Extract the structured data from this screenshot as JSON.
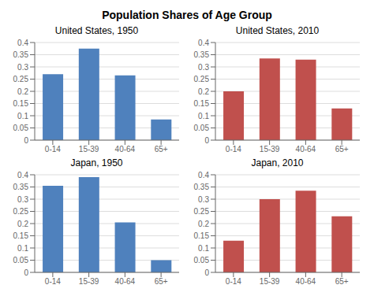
{
  "title": "Population Shares of Age Group",
  "chart_data": [
    {
      "type": "bar",
      "title": "United States, 1950",
      "categories": [
        "0-14",
        "15-39",
        "40-64",
        "65+"
      ],
      "values": [
        0.27,
        0.375,
        0.265,
        0.085
      ],
      "color": "#4F81BD",
      "ylim": [
        0,
        0.4
      ],
      "yticks": [
        0,
        0.05,
        0.1,
        0.15,
        0.2,
        0.25,
        0.3,
        0.35,
        0.4
      ],
      "grid": true
    },
    {
      "type": "bar",
      "title": "United States, 2010",
      "categories": [
        "0-14",
        "15-39",
        "40-64",
        "65+"
      ],
      "values": [
        0.2,
        0.335,
        0.33,
        0.13
      ],
      "color": "#C0504D",
      "ylim": [
        0,
        0.4
      ],
      "yticks": [
        0,
        0.05,
        0.1,
        0.15,
        0.2,
        0.25,
        0.3,
        0.35,
        0.4
      ],
      "grid": true
    },
    {
      "type": "bar",
      "title": "Japan, 1950",
      "categories": [
        "0-14",
        "15-39",
        "40-64",
        "65+"
      ],
      "values": [
        0.355,
        0.39,
        0.205,
        0.05
      ],
      "color": "#4F81BD",
      "ylim": [
        0,
        0.4
      ],
      "yticks": [
        0,
        0.05,
        0.1,
        0.15,
        0.2,
        0.25,
        0.3,
        0.35,
        0.4
      ],
      "grid": true
    },
    {
      "type": "bar",
      "title": "Japan, 2010",
      "categories": [
        "0-14",
        "15-39",
        "40-64",
        "65+"
      ],
      "values": [
        0.13,
        0.3,
        0.335,
        0.23
      ],
      "color": "#C0504D",
      "ylim": [
        0,
        0.4
      ],
      "yticks": [
        0,
        0.05,
        0.1,
        0.15,
        0.2,
        0.25,
        0.3,
        0.35,
        0.4
      ],
      "grid": true
    }
  ]
}
